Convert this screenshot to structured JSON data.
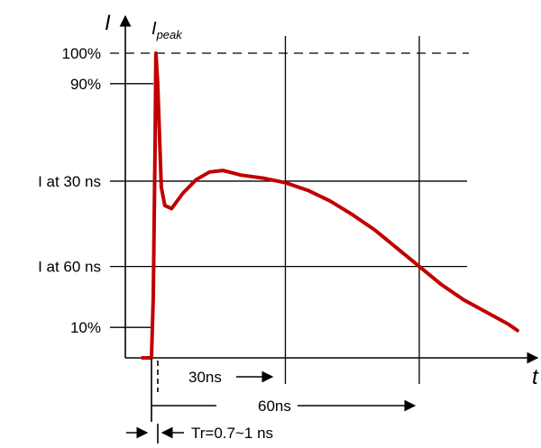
{
  "chart_data": {
    "type": "line",
    "title": "",
    "y_axis_label": "I",
    "x_axis_label": "t",
    "peak_label": {
      "main": "I",
      "sub": "peak"
    },
    "x_unit": "ns",
    "y_unit": "% of I_peak",
    "xlim": [
      -2,
      82
    ],
    "ylim": [
      0,
      100
    ],
    "y_ticks": [
      {
        "label": "100%",
        "value": 100
      },
      {
        "label": "90%",
        "value": 90
      },
      {
        "label": "I at 30 ns",
        "value": 58
      },
      {
        "label": "I at 60 ns",
        "value": 30
      },
      {
        "label": "10%",
        "value": 10
      }
    ],
    "reference_times": [
      30,
      60
    ],
    "annotations": {
      "t30": "30ns",
      "t60": "60ns",
      "rise_time": "Tr=0.7~1 ns"
    },
    "series": [
      {
        "color": "#c00000",
        "points": [
          [
            -2,
            0
          ],
          [
            0,
            0
          ],
          [
            0.4,
            20
          ],
          [
            0.8,
            70
          ],
          [
            1.0,
            100
          ],
          [
            1.4,
            90
          ],
          [
            2.2,
            56
          ],
          [
            3,
            50
          ],
          [
            4.5,
            49
          ],
          [
            7,
            54
          ],
          [
            10,
            58.5
          ],
          [
            13,
            61
          ],
          [
            16,
            61.5
          ],
          [
            20,
            60
          ],
          [
            25,
            59
          ],
          [
            30,
            57.5
          ],
          [
            35,
            55
          ],
          [
            40,
            51.5
          ],
          [
            45,
            47
          ],
          [
            50,
            42
          ],
          [
            55,
            36
          ],
          [
            60,
            30
          ],
          [
            65,
            24
          ],
          [
            70,
            19
          ],
          [
            75,
            15
          ],
          [
            80,
            11
          ],
          [
            82,
            9
          ]
        ]
      }
    ],
    "grid": "reference lines at y-tick levels and at 30 ns / 60 ns"
  }
}
